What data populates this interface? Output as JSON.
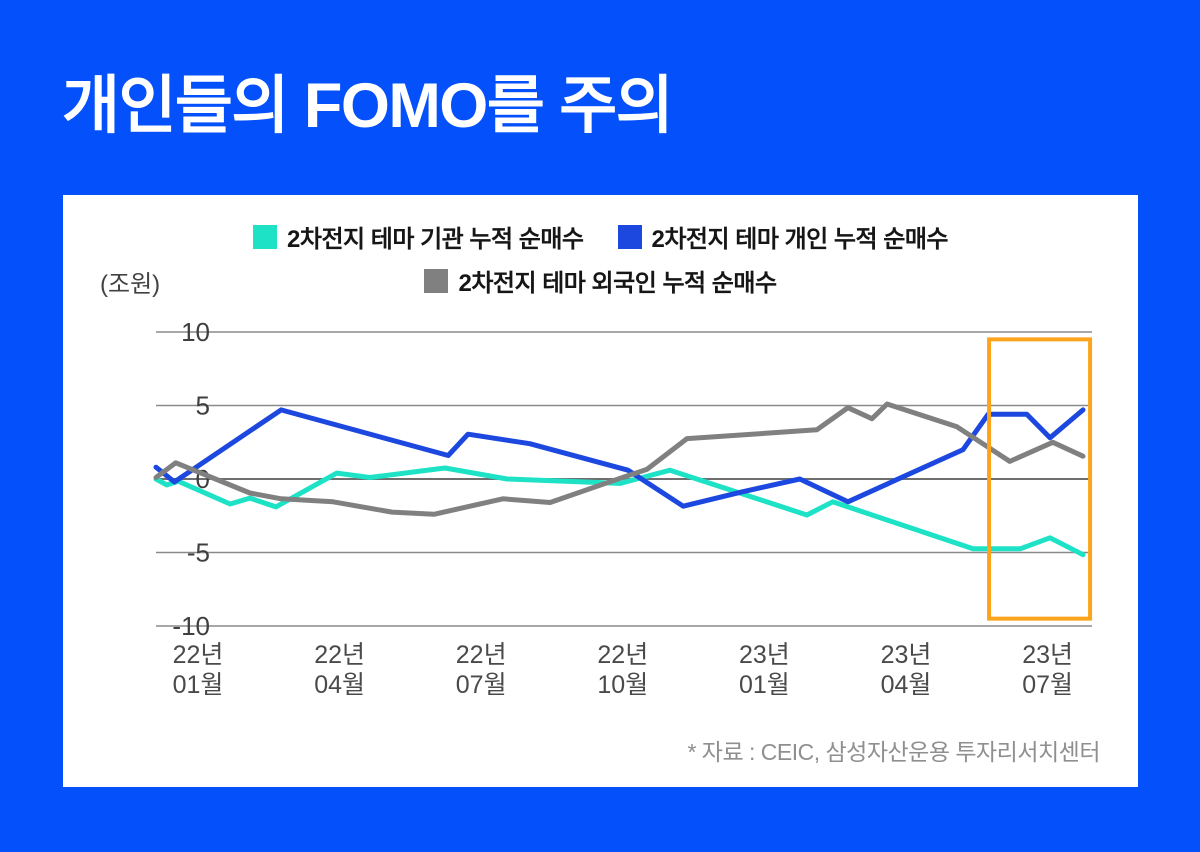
{
  "title": "개인들의 FOMO를 주의",
  "footer": {
    "source": "* 자료 : CEIC, 삼성자산운용 투자리서치센터"
  },
  "colors": {
    "background": "#0450FB",
    "card": "#FFFFFF",
    "title_text": "#FFFFFF",
    "gridline": "#8A8A8A",
    "zero_line": "#6E6E6E",
    "axis_text": "#424242",
    "legend_text": "#161616",
    "source_text": "#8F8F8F",
    "highlight": "#FBA41C"
  },
  "chart_data": {
    "type": "line",
    "title": "",
    "xlabel": "",
    "ylabel": "(조원)",
    "ylim": [
      -10,
      10
    ],
    "yticks": [
      10,
      5,
      0,
      -5,
      -10
    ],
    "grid": "horizontal",
    "legend_position": "top",
    "x_unit": "months since 2022-01",
    "xlim": [
      -0.9,
      18.9
    ],
    "xticks": [
      {
        "m": 0,
        "line1": "22년",
        "line2": "01월"
      },
      {
        "m": 3,
        "line1": "22년",
        "line2": "04월"
      },
      {
        "m": 6,
        "line1": "22년",
        "line2": "07월"
      },
      {
        "m": 9,
        "line1": "22년",
        "line2": "10월"
      },
      {
        "m": 12,
        "line1": "23년",
        "line2": "01월"
      },
      {
        "m": 15,
        "line1": "23년",
        "line2": "04월"
      },
      {
        "m": 18,
        "line1": "23년",
        "line2": "07월"
      }
    ],
    "series": [
      {
        "name": "2차전지 테마 기관 누적 순매수",
        "color": "#1DE2C6",
        "points": [
          [
            -0.89,
            0.0
          ],
          [
            -0.66,
            -0.4
          ],
          [
            -0.42,
            -0.15
          ],
          [
            0.68,
            -1.7
          ],
          [
            1.1,
            -1.3
          ],
          [
            1.65,
            -1.9
          ],
          [
            2.94,
            0.4
          ],
          [
            3.64,
            0.1
          ],
          [
            5.23,
            0.75
          ],
          [
            6.55,
            0.0
          ],
          [
            8.94,
            -0.3
          ],
          [
            10.0,
            0.6
          ],
          [
            12.9,
            -2.45
          ],
          [
            13.45,
            -1.55
          ],
          [
            16.42,
            -4.75
          ],
          [
            17.42,
            -4.75
          ],
          [
            18.05,
            -4.0
          ],
          [
            18.75,
            -5.15
          ]
        ]
      },
      {
        "name": "2차전지 테마 개인 누적 순매수",
        "color": "#1C48E0",
        "points": [
          [
            -0.89,
            0.8
          ],
          [
            -0.5,
            -0.2
          ],
          [
            1.76,
            4.7
          ],
          [
            5.3,
            1.6
          ],
          [
            5.72,
            3.05
          ],
          [
            7.03,
            2.4
          ],
          [
            9.11,
            0.6
          ],
          [
            10.28,
            -1.85
          ],
          [
            11.5,
            -0.9
          ],
          [
            12.75,
            0.0
          ],
          [
            13.77,
            -1.55
          ],
          [
            16.21,
            2.0
          ],
          [
            16.74,
            4.4
          ],
          [
            17.56,
            4.4
          ],
          [
            18.05,
            2.8
          ],
          [
            18.75,
            4.7
          ]
        ]
      },
      {
        "name": "2차전지 테마 외국인 누적 순매수",
        "color": "#808080",
        "points": [
          [
            -0.89,
            0.1
          ],
          [
            -0.47,
            1.1
          ],
          [
            1.1,
            -0.95
          ],
          [
            1.76,
            -1.35
          ],
          [
            2.86,
            -1.55
          ],
          [
            4.11,
            -2.25
          ],
          [
            5.0,
            -2.4
          ],
          [
            6.46,
            -1.35
          ],
          [
            7.46,
            -1.6
          ],
          [
            8.94,
            0.05
          ],
          [
            9.51,
            0.65
          ],
          [
            10.36,
            2.75
          ],
          [
            13.11,
            3.35
          ],
          [
            13.77,
            4.85
          ],
          [
            14.28,
            4.1
          ],
          [
            14.6,
            5.1
          ],
          [
            16.08,
            3.55
          ],
          [
            17.2,
            1.2
          ],
          [
            18.11,
            2.5
          ],
          [
            18.75,
            1.55
          ]
        ]
      }
    ],
    "highlight_box": {
      "x0": 16.76,
      "x1": 18.9,
      "y0": -9.5,
      "y1": 9.5,
      "color": "#FBA41C"
    }
  }
}
